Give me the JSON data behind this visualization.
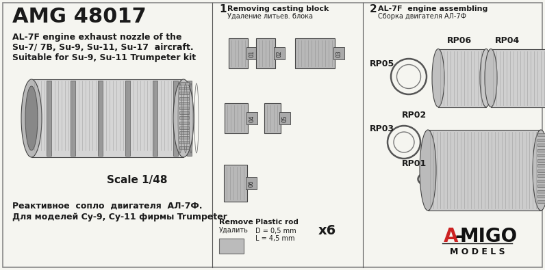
{
  "bg_color": "#f5f5f0",
  "border_color": "#888888",
  "title": "AMG 48017",
  "subtitle_line1": "AL-7F engine exhaust nozzle of the",
  "subtitle_line2": "Su-7/ 7B, Su-9, Su-11, Su-17  aircraft.",
  "subtitle_line3": "Suitable for Su-9, Su-11 Trumpeter kit",
  "scale_text": "Scale 1/48",
  "russian_line1": "Реактивное  сопло  двигателя  АЛ-7Ф.",
  "russian_line2": "Для моделей Су-9, Су-11 фирмы Trumpeter",
  "step1_label": "1",
  "step1_title": "Removing casting block",
  "step1_title_ru": "Удаление литьев. блока",
  "step2_label": "2",
  "step2_title": "AL-7F  engine assembling",
  "step2_title_ru": "Сборка двигателя АЛ-7Ф",
  "remove_label": "Remove",
  "remove_label_ru": "Удалить",
  "plastic_rod_line1": "Plastic rod",
  "plastic_rod_line2": "D = 0,5 mm",
  "plastic_rod_line3": "L = 4,5 mm",
  "x6_label": "x6",
  "rp_labels": [
    "RP01",
    "RP02",
    "RP03",
    "RP04",
    "RP05",
    "RP06"
  ],
  "part_labels": [
    "01",
    "02",
    "03",
    "04",
    "05",
    "06"
  ],
  "gray_color": "#aaaaaa",
  "dark_gray": "#555555",
  "light_gray": "#cccccc",
  "part_fill": "#b0b0b0",
  "text_color": "#1a1a1a",
  "divider_color": "#555555",
  "amigo_red": "#cc2222",
  "amigo_black": "#111111"
}
